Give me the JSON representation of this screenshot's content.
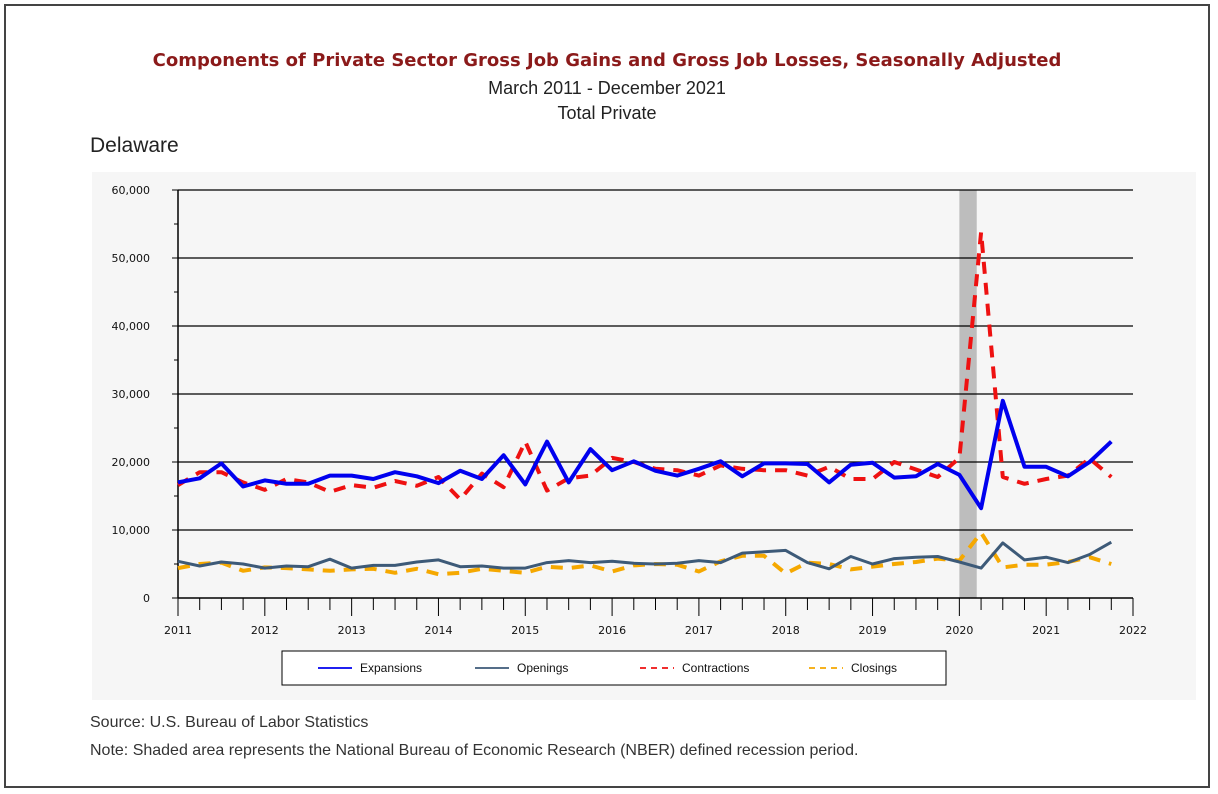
{
  "chart_data": {
    "type": "line",
    "title": "Components of Private Sector Gross Job Gains and Gross Job Losses, Seasonally Adjusted",
    "subtitle": "March 2011 - December 2021",
    "subtitle2": "Total Private",
    "region": "Delaware",
    "ylim": [
      0,
      60000
    ],
    "xlim": [
      2011,
      2022
    ],
    "y_ticks": [
      "0",
      "10,000",
      "20,000",
      "30,000",
      "40,000",
      "50,000",
      "60,000"
    ],
    "x_ticks": [
      "2011",
      "2012",
      "2013",
      "2014",
      "2015",
      "2016",
      "2017",
      "2018",
      "2019",
      "2020",
      "2021",
      "2022"
    ],
    "grid": "horizontal",
    "legend_position": "bottom",
    "recession": {
      "start": 2020.0,
      "end": 2020.2
    },
    "x": [
      2011.0,
      2011.25,
      2011.5,
      2011.75,
      2012.0,
      2012.25,
      2012.5,
      2012.75,
      2013.0,
      2013.25,
      2013.5,
      2013.75,
      2014.0,
      2014.25,
      2014.5,
      2014.75,
      2015.0,
      2015.25,
      2015.5,
      2015.75,
      2016.0,
      2016.25,
      2016.5,
      2016.75,
      2017.0,
      2017.25,
      2017.5,
      2017.75,
      2018.0,
      2018.25,
      2018.5,
      2018.75,
      2019.0,
      2019.25,
      2019.5,
      2019.75,
      2020.0,
      2020.25,
      2020.5,
      2020.75,
      2021.0,
      2021.25,
      2021.5,
      2021.75
    ],
    "series": [
      {
        "name": "Expansions",
        "color": "#0000ee",
        "dash": "solid",
        "width": 4,
        "values": [
          17000,
          17600,
          19800,
          16400,
          17300,
          16800,
          16800,
          18000,
          18000,
          17500,
          18500,
          17900,
          16900,
          18700,
          17500,
          21000,
          16700,
          23000,
          17000,
          21900,
          18800,
          20100,
          18700,
          18000,
          19000,
          20100,
          17900,
          19800,
          19800,
          19700,
          17000,
          19600,
          19900,
          17700,
          17900,
          19700,
          18100,
          13200,
          29000,
          19300,
          19300,
          17900,
          20000,
          23000
        ]
      },
      {
        "name": "Openings",
        "color": "#3d5a78",
        "dash": "solid",
        "width": 3,
        "values": [
          5400,
          4700,
          5300,
          5000,
          4400,
          4700,
          4600,
          5700,
          4400,
          4800,
          4800,
          5300,
          5600,
          4600,
          4700,
          4400,
          4400,
          5200,
          5500,
          5200,
          5400,
          5100,
          5000,
          5100,
          5500,
          5200,
          6600,
          6800,
          7000,
          5200,
          4300,
          6100,
          5000,
          5800,
          6000,
          6100,
          5300,
          4400,
          8100,
          5600,
          6000,
          5200,
          6400,
          8200
        ]
      },
      {
        "name": "Contractions",
        "color": "#ee1111",
        "dash": "dashed",
        "width": 4,
        "values": [
          16600,
          18500,
          18500,
          17000,
          15900,
          17500,
          17000,
          15600,
          16600,
          16200,
          17200,
          16500,
          17800,
          14500,
          18300,
          16300,
          23000,
          15800,
          17600,
          18000,
          20600,
          20000,
          19000,
          18800,
          18000,
          19500,
          19000,
          18800,
          18800,
          18000,
          19300,
          17500,
          17500,
          20000,
          18900,
          17800,
          20600,
          53800,
          17800,
          16800,
          17500,
          18000,
          20500,
          17800
        ]
      },
      {
        "name": "Closings",
        "color": "#f5a800",
        "dash": "dashed",
        "width": 4,
        "values": [
          4400,
          5000,
          5200,
          4000,
          4500,
          4400,
          4200,
          4000,
          4200,
          4300,
          3700,
          4300,
          3500,
          3700,
          4300,
          4000,
          3700,
          4600,
          4400,
          4800,
          3900,
          4800,
          5000,
          4900,
          3900,
          5400,
          6200,
          6200,
          3600,
          5200,
          5000,
          4200,
          4600,
          5000,
          5300,
          5800,
          5500,
          9600,
          4500,
          4900,
          4900,
          5300,
          6000,
          5000
        ]
      }
    ]
  },
  "source": "Source: U.S. Bureau of Labor Statistics",
  "note": "Note: Shaded area represents the National Bureau of Economic Research (NBER) defined recession period."
}
